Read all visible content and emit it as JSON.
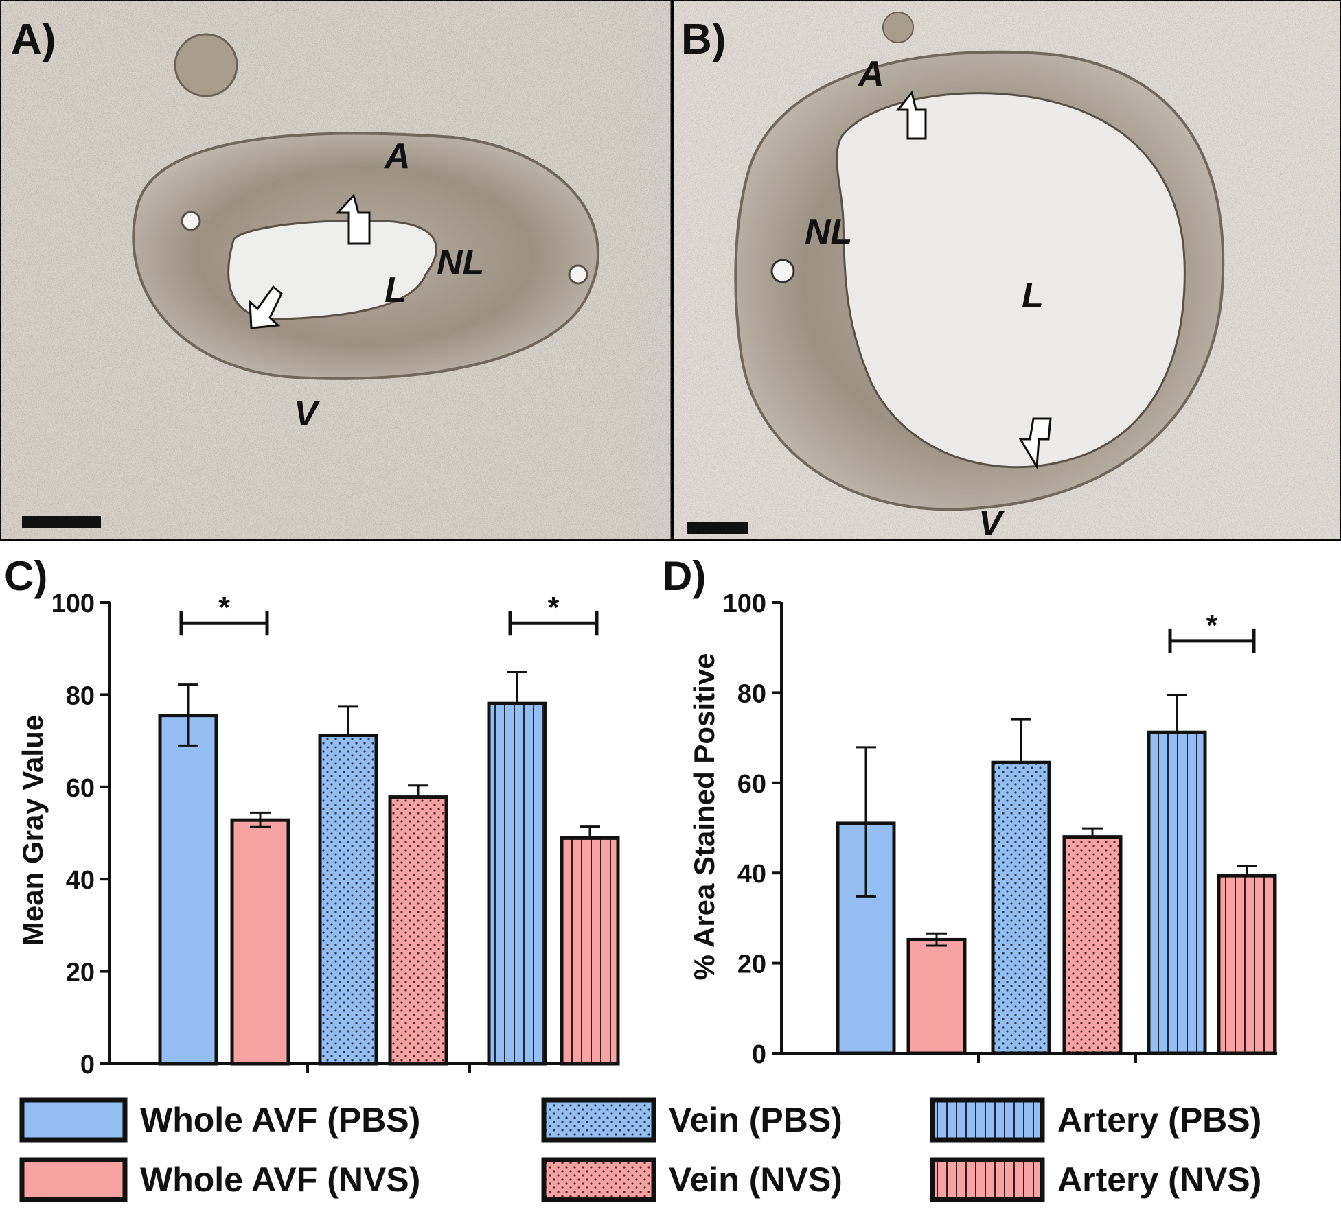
{
  "panels": {
    "a": {
      "label": "A)",
      "annotations": [
        "A",
        "NL",
        "L",
        "V"
      ]
    },
    "b": {
      "label": "B)",
      "annotations": [
        "A",
        "NL",
        "L",
        "V"
      ]
    },
    "c": {
      "label": "C)"
    },
    "d": {
      "label": "D)"
    }
  },
  "colors": {
    "pbs": "#94bdf2",
    "nvs": "#f7a3a3",
    "outline": "#111111",
    "tissue": "#8a7d6e",
    "lumen": "#ededeb"
  },
  "legend": {
    "items": [
      {
        "label": "Whole AVF (PBS)",
        "pattern": "solid",
        "group": "pbs"
      },
      {
        "label": "Whole AVF (NVS)",
        "pattern": "solid",
        "group": "nvs"
      },
      {
        "label": "Vein (PBS)",
        "pattern": "dots",
        "group": "pbs"
      },
      {
        "label": "Vein (NVS)",
        "pattern": "dots",
        "group": "nvs"
      },
      {
        "label": "Artery (PBS)",
        "pattern": "stripes",
        "group": "pbs"
      },
      {
        "label": "Artery (NVS)",
        "pattern": "stripes",
        "group": "nvs"
      }
    ]
  },
  "chart_data": [
    {
      "panel": "C)",
      "type": "bar",
      "ylabel": "Mean Gray Value",
      "ylim": [
        0,
        100
      ],
      "yticks": [
        "0",
        "20",
        "40",
        "60",
        "80",
        "100"
      ],
      "categories": [
        "Whole AVF (PBS)",
        "Whole AVF (NVS)",
        "Vein (PBS)",
        "Vein (NVS)",
        "Artery (PBS)",
        "Artery (NVS)"
      ],
      "values": [
        75.5,
        52.8,
        71.2,
        57.8,
        78.1,
        48.9
      ],
      "error_upper": [
        82.2,
        54.4,
        77.4,
        60.3,
        84.9,
        51.4
      ],
      "error_lower": [
        69.0,
        51.3,
        null,
        null,
        null,
        null
      ],
      "significance": [
        {
          "between": [
            0,
            1
          ],
          "label": "*",
          "y": 95.5
        },
        {
          "between": [
            4,
            5
          ],
          "label": "*",
          "y": 95.5
        }
      ]
    },
    {
      "panel": "D)",
      "type": "bar",
      "ylabel": "% Area Stained Positive",
      "ylim": [
        0,
        100
      ],
      "yticks": [
        "0",
        "20",
        "40",
        "60",
        "80",
        "100"
      ],
      "categories": [
        "Whole AVF (PBS)",
        "Whole AVF (NVS)",
        "Vein (PBS)",
        "Vein (NVS)",
        "Artery (PBS)",
        "Artery (NVS)"
      ],
      "values": [
        51.0,
        25.2,
        64.5,
        48.0,
        71.2,
        39.4
      ],
      "error_upper": [
        67.9,
        26.6,
        74.1,
        49.9,
        79.5,
        41.6
      ],
      "error_lower": [
        34.8,
        23.9,
        null,
        null,
        null,
        null
      ],
      "significance": [
        {
          "between": [
            4,
            5
          ],
          "label": "*",
          "y": 91.5
        }
      ]
    }
  ]
}
